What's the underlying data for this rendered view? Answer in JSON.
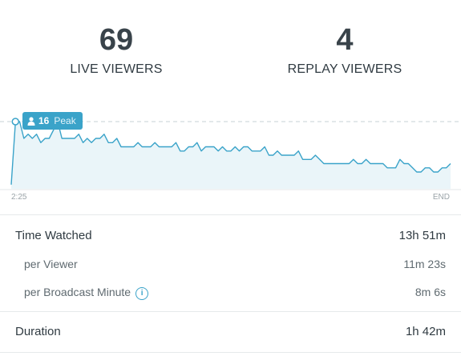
{
  "stats": {
    "live": {
      "value": "69",
      "label": "LIVE VIEWERS"
    },
    "replay": {
      "value": "4",
      "label": "REPLAY VIEWERS"
    }
  },
  "chart": {
    "peak_value": "16",
    "peak_label": "Peak",
    "x_start": "2:25",
    "x_end": "END",
    "accent": "#3aa3c9"
  },
  "chart_data": {
    "type": "area",
    "title": "",
    "xlabel": "",
    "ylabel": "",
    "x_ticks": [
      "2:25",
      "END"
    ],
    "ylim": [
      0,
      16
    ],
    "peak": 16,
    "values": [
      1,
      16,
      16,
      12,
      13,
      12,
      13,
      11,
      12,
      12,
      14,
      16,
      12,
      12,
      12,
      12,
      13,
      11,
      12,
      11,
      12,
      12,
      13,
      11,
      11,
      12,
      10,
      10,
      10,
      10,
      11,
      10,
      10,
      10,
      11,
      10,
      10,
      10,
      10,
      11,
      9,
      9,
      10,
      10,
      11,
      9,
      10,
      10,
      10,
      9,
      10,
      9,
      9,
      10,
      9,
      10,
      10,
      9,
      9,
      9,
      10,
      8,
      8,
      9,
      8,
      8,
      8,
      8,
      9,
      7,
      7,
      7,
      8,
      7,
      6,
      6,
      6,
      6,
      6,
      6,
      6,
      7,
      6,
      6,
      7,
      6,
      6,
      6,
      6,
      5,
      5,
      5,
      7,
      6,
      6,
      5,
      4,
      4,
      5,
      5,
      4,
      4,
      5,
      5,
      6
    ]
  },
  "metrics": {
    "time_watched": {
      "label": "Time Watched",
      "value": "13h 51m"
    },
    "per_viewer": {
      "label": "per Viewer",
      "value": "11m 23s"
    },
    "per_broadcast_minute": {
      "label": "per Broadcast Minute",
      "value": "8m 6s"
    },
    "duration": {
      "label": "Duration",
      "value": "1h 42m"
    }
  }
}
